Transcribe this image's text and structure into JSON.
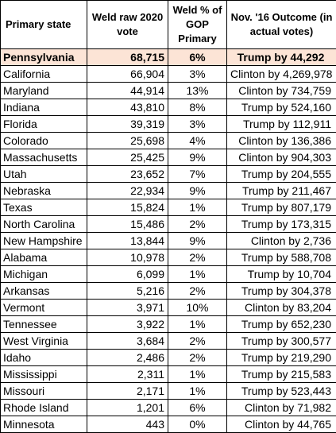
{
  "table": {
    "headers": [
      "Primary state",
      "Weld raw 2020 vote",
      "Weld % of GOP Primary",
      "Nov. '16 Outcome (in actual votes)"
    ],
    "highlight_color": "#fce4d6",
    "highlighted_row_index": 0,
    "rows": [
      {
        "state": "Pennsylvania",
        "raw": "68,715",
        "pct": "6%",
        "outcome": "Trump by 44,292"
      },
      {
        "state": "California",
        "raw": "66,904",
        "pct": "3%",
        "outcome": "Clinton by 4,269,978"
      },
      {
        "state": "Maryland",
        "raw": "44,914",
        "pct": "13%",
        "outcome": "Clinton by 734,759"
      },
      {
        "state": "Indiana",
        "raw": "43,810",
        "pct": "8%",
        "outcome": "Trump by 524,160"
      },
      {
        "state": "Florida",
        "raw": "39,319",
        "pct": "3%",
        "outcome": "Trump by 112,911"
      },
      {
        "state": "Colorado",
        "raw": "25,698",
        "pct": "4%",
        "outcome": "Clinton by 136,386"
      },
      {
        "state": "Massachusetts",
        "raw": "25,425",
        "pct": "9%",
        "outcome": "Clinton by 904,303"
      },
      {
        "state": "Utah",
        "raw": "23,652",
        "pct": "7%",
        "outcome": "Trump by 204,555"
      },
      {
        "state": "Nebraska",
        "raw": "22,934",
        "pct": "9%",
        "outcome": "Trump by 211,467"
      },
      {
        "state": "Texas",
        "raw": "15,824",
        "pct": "1%",
        "outcome": "Trump by 807,179"
      },
      {
        "state": "North Carolina",
        "raw": "15,486",
        "pct": "2%",
        "outcome": "Trump by 173,315"
      },
      {
        "state": "New Hampshire",
        "raw": "13,844",
        "pct": "9%",
        "outcome": "Clinton by 2,736"
      },
      {
        "state": "Alabama",
        "raw": "10,978",
        "pct": "2%",
        "outcome": "Trump by 588,708"
      },
      {
        "state": "Michigan",
        "raw": "6,099",
        "pct": "1%",
        "outcome": "Trump by 10,704"
      },
      {
        "state": "Arkansas",
        "raw": "5,216",
        "pct": "2%",
        "outcome": "Trump by 304,378"
      },
      {
        "state": "Vermont",
        "raw": "3,971",
        "pct": "10%",
        "outcome": "Clinton by 83,204"
      },
      {
        "state": "Tennessee",
        "raw": "3,922",
        "pct": "1%",
        "outcome": "Trump by 652,230"
      },
      {
        "state": "West Virginia",
        "raw": "3,684",
        "pct": "2%",
        "outcome": "Trump by 300,577"
      },
      {
        "state": "Idaho",
        "raw": "2,486",
        "pct": "2%",
        "outcome": "Trump by 219,290"
      },
      {
        "state": "Mississippi",
        "raw": "2,311",
        "pct": "1%",
        "outcome": "Trump by 215,583"
      },
      {
        "state": "Missouri",
        "raw": "2,171",
        "pct": "1%",
        "outcome": "Trump by 523,443"
      },
      {
        "state": "Rhode Island",
        "raw": "1,201",
        "pct": "6%",
        "outcome": "Clinton by 71,982"
      },
      {
        "state": "Minnesota",
        "raw": "443",
        "pct": "0%",
        "outcome": "Clinton by 44,765"
      }
    ]
  }
}
